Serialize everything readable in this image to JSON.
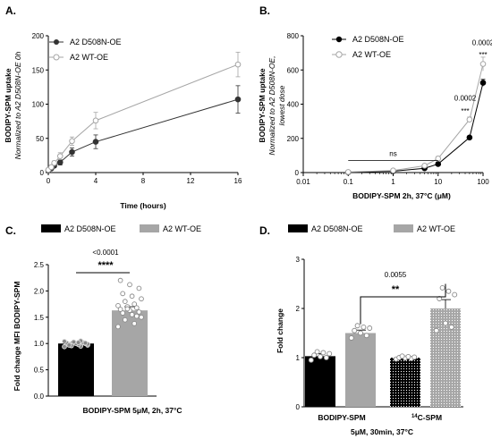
{
  "chart_data": [
    {
      "panel": "A.",
      "type": "line",
      "xlabel": "Time (hours)",
      "ylabel_line1": "BODIPY-SPM uptake",
      "ylabel_line2": "Normalized to A2 D508N-OE 0h",
      "xlim": [
        0,
        16
      ],
      "ylim": [
        0,
        200
      ],
      "x_ticks": [
        0,
        4,
        8,
        12,
        16
      ],
      "y_ticks": [
        0,
        50,
        100,
        150,
        200
      ],
      "legend_position": "top-left",
      "series": [
        {
          "name": "A2 D508N-OE",
          "color": "#333333",
          "marker": "filled",
          "x": [
            0,
            0.25,
            0.5,
            1,
            2,
            4,
            16
          ],
          "y": [
            3,
            6,
            10,
            15,
            30,
            45,
            107
          ],
          "err": [
            1,
            2,
            3,
            4,
            6,
            10,
            20
          ]
        },
        {
          "name": "A2 WT-OE",
          "color": "#a6a6a6",
          "marker": "open",
          "x": [
            0,
            0.25,
            0.5,
            1,
            2,
            4,
            16
          ],
          "y": [
            4,
            8,
            14,
            24,
            46,
            76,
            158
          ],
          "err": [
            1,
            2,
            3,
            5,
            6,
            12,
            18
          ]
        }
      ]
    },
    {
      "panel": "B.",
      "type": "line",
      "xscale": "log",
      "xlabel": "BODIPY-SPM 2h, 37°C (μM)",
      "ylabel_line1": "BODIPY-SPM uptake",
      "ylabel_line2": "Normalized to A2 D508N-OE,",
      "ylabel_line3": "lowest dose",
      "xlim": [
        0.01,
        100
      ],
      "ylim": [
        0,
        800
      ],
      "x_ticks": [
        0.01,
        0.1,
        1,
        10,
        100
      ],
      "x_tick_labels": [
        "0.01",
        "0.1",
        "1",
        "10",
        "100"
      ],
      "y_ticks": [
        0,
        200,
        400,
        600,
        800
      ],
      "legend_position": "top-left",
      "series": [
        {
          "name": "A2 D508N-OE",
          "color": "#000000",
          "marker": "filled",
          "x": [
            0.1,
            1,
            5,
            10,
            50,
            100
          ],
          "y": [
            2,
            8,
            25,
            50,
            205,
            525
          ],
          "err": [
            1,
            3,
            5,
            8,
            10,
            20
          ]
        },
        {
          "name": "A2 WT-OE",
          "color": "#a6a6a6",
          "marker": "open",
          "x": [
            0.1,
            1,
            5,
            10,
            50,
            100
          ],
          "y": [
            3,
            12,
            40,
            82,
            310,
            635
          ],
          "err": [
            1,
            4,
            8,
            12,
            15,
            40
          ]
        }
      ],
      "annotations": [
        {
          "text": "ns",
          "x": 1,
          "y": 80,
          "line_x": [
            0.1,
            10
          ]
        },
        {
          "text": "0.0002",
          "x": 40,
          "y": 420
        },
        {
          "text": "***",
          "x": 40,
          "y": 345
        },
        {
          "text": "0.0002",
          "x": 100,
          "y": 745
        },
        {
          "text": "***",
          "x": 100,
          "y": 675
        }
      ]
    },
    {
      "panel": "C.",
      "type": "bar",
      "xlabel": "BODIPY-SPM 5μM, 2h, 37°C",
      "ylabel": "Fold change MFI BODIPY-SPM",
      "ylim": [
        0,
        2.5
      ],
      "y_ticks": [
        0,
        0.5,
        1.0,
        1.5,
        2.0,
        2.5
      ],
      "y_tick_labels": [
        "0.0",
        "0.5",
        "1.0",
        "1.5",
        "2.0",
        "2.5"
      ],
      "legend_position": "top",
      "series": [
        {
          "name": "A2 D508N-OE",
          "color": "#000000",
          "value": 1.0,
          "err": 0.03,
          "points": [
            0.94,
            0.95,
            0.96,
            0.97,
            0.98,
            0.99,
            1.0,
            1.0,
            1.01,
            1.02,
            1.03,
            1.04,
            1.05,
            0.96,
            0.99,
            1.02,
            0.97,
            1.01
          ]
        },
        {
          "name": "A2 WT-OE",
          "color": "#a6a6a6",
          "value": 1.63,
          "err": 0.07,
          "points": [
            1.32,
            1.38,
            1.45,
            1.5,
            1.55,
            1.58,
            1.6,
            1.63,
            1.65,
            1.68,
            1.7,
            1.72,
            1.75,
            1.8,
            1.85,
            1.9,
            1.95,
            2.05,
            2.12,
            2.2,
            1.52,
            1.66
          ]
        }
      ],
      "annotations": [
        {
          "text": "<0.0001"
        },
        {
          "text": "****"
        }
      ]
    },
    {
      "panel": "D.",
      "type": "bar",
      "xlabel": "5μM, 30min, 37°C",
      "group_labels": [
        "BODIPY-SPM",
        "C-SPM"
      ],
      "group_label_superscript": [
        "",
        "14"
      ],
      "ylabel": "Fold change",
      "ylim": [
        0,
        3
      ],
      "y_ticks": [
        0,
        1,
        2,
        3
      ],
      "legend_position": "top",
      "legend": [
        {
          "name": "A2 D508N-OE",
          "color": "#000000"
        },
        {
          "name": "A2 WT-OE",
          "color": "#a6a6a6"
        }
      ],
      "bars": [
        {
          "group": "BODIPY-SPM",
          "series": "A2 D508N-OE",
          "fill": "black",
          "value": 1.03,
          "err": 0.05,
          "points": [
            0.95,
            1.0,
            1.02,
            1.05,
            1.08,
            1.1,
            1.12
          ]
        },
        {
          "group": "BODIPY-SPM",
          "series": "A2 WT-OE",
          "fill": "gray",
          "value": 1.5,
          "err": 0.06,
          "points": [
            1.4,
            1.45,
            1.5,
            1.55,
            1.6,
            1.62,
            1.65
          ]
        },
        {
          "group": "C-SPM",
          "series": "A2 D508N-OE",
          "fill": "dotted",
          "value": 1.0,
          "err": 0.03,
          "points": [
            0.97,
            0.98,
            0.99,
            1.0,
            1.01,
            1.02,
            1.03
          ]
        },
        {
          "group": "C-SPM",
          "series": "A2 WT-OE",
          "fill": "dotted-gray",
          "value": 2.0,
          "err": 0.18,
          "points": [
            1.55,
            1.62,
            1.7,
            2.2,
            2.28,
            2.35,
            2.42
          ]
        }
      ],
      "annotations": [
        {
          "text": "0.0055"
        },
        {
          "text": "**"
        }
      ]
    }
  ]
}
